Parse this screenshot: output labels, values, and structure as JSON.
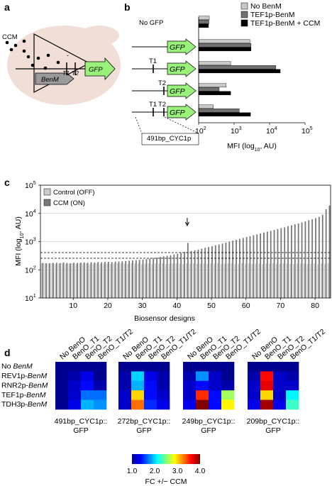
{
  "panel_letters": [
    "a",
    "b",
    "c",
    "d"
  ],
  "panel_a": {
    "ccm_label": "CCM",
    "gene_label": "BenM",
    "gfp_label": "GFP",
    "t1": "T1",
    "t2": "T2",
    "colors": {
      "cell": "#f1dfd7",
      "gfp": "#99f27a",
      "gene": "#9a9a9a"
    }
  },
  "panel_b": {
    "row_labels": [
      "No GFP",
      "",
      "",
      "",
      ""
    ],
    "constructs": [
      {
        "t1": "",
        "t2": "",
        "gfp": ""
      },
      {
        "t1": "",
        "t2": "",
        "gfp": "GFP"
      },
      {
        "t1": "T1",
        "t2": "",
        "gfp": "GFP"
      },
      {
        "t1": "",
        "t2": "T2",
        "gfp": "GFP"
      },
      {
        "t1": "T1",
        "t2": "T2",
        "gfp": "GFP"
      }
    ],
    "promoter_label": "491bp_CYC1p",
    "xlabel": "MFI (log10, AU)",
    "xticks": [
      "10",
      "10",
      "10",
      "10"
    ],
    "xtick_exp": [
      "2",
      "3",
      "4",
      "5"
    ]
  },
  "panel_c": {
    "legend": [
      "Control (OFF)",
      "CCM (ON)"
    ],
    "ylabel": "MFI (log10, AU)",
    "xlabel": "Biosensor designs",
    "yticks": [
      "10",
      "10",
      "10",
      "10",
      "10"
    ],
    "ytick_exp": [
      "1",
      "2",
      "3",
      "4",
      "5"
    ],
    "xticks": [
      "10",
      "20",
      "30",
      "40",
      "50",
      "60",
      "70",
      "80"
    ]
  },
  "panel_d": {
    "col_labels": [
      "No BenO",
      "BenO_T1",
      "BenO_T2",
      "BenO_T1/T2"
    ],
    "row_labels": [
      "No BenM",
      "REV1p-BenM",
      "RNR2p-BenM",
      "TEF1p-BenM",
      "TDH3p-BenM"
    ],
    "group_labels": [
      {
        "line1": "491bp_CYC1p::",
        "line2": "GFP"
      },
      {
        "line1": "272bp_CYC1p::",
        "line2": "GFP"
      },
      {
        "line1": "249bp_CYC1p::",
        "line2": "GFP"
      },
      {
        "line1": "209bp_CYC1p::",
        "line2": "GFP"
      }
    ],
    "colorbar_ticks": [
      "1.0",
      "2.0",
      "3.0",
      "4.0"
    ],
    "colorbar_label": "FC +/− CCM"
  },
  "chart_data": [
    {
      "type": "bar",
      "panel": "b",
      "orientation": "horizontal",
      "x_scale": "log",
      "xlim": [
        100,
        100000
      ],
      "xlabel": "MFI (log10, AU)",
      "legend_position": "top-right",
      "series": [
        {
          "name": "No BenM",
          "color": "#c8c8c8",
          "values": [
            200,
            2800,
            800,
            600,
            260
          ]
        },
        {
          "name": "TEF1p-BenM",
          "color": "#707070",
          "values": [
            195,
            3000,
            15000,
            380,
            1400
          ]
        },
        {
          "name": "TEF1p-BenM + CCM",
          "color": "#000000",
          "values": [
            190,
            3000,
            20000,
            800,
            2900
          ]
        }
      ]
    },
    {
      "type": "bar",
      "panel": "c",
      "y_scale": "log",
      "ylim": [
        10,
        100000
      ],
      "xlim": [
        0,
        84
      ],
      "xlabel": "Biosensor designs",
      "ylabel": "MFI (log10, AU)",
      "legend_position": "top-left",
      "reference_lines": [
        150,
        200
      ],
      "annotation_arrow_design": 43,
      "series": [
        {
          "name": "Control (OFF)",
          "color": "#cccccc",
          "values": [
            170,
            168,
            165,
            170,
            160,
            165,
            170,
            160,
            165,
            168,
            160,
            170,
            165,
            168,
            160,
            165,
            170,
            160,
            165,
            170,
            160,
            165,
            168,
            170,
            165,
            160,
            170,
            165,
            168,
            160,
            165,
            170,
            160,
            168,
            165,
            170,
            160,
            165,
            168,
            170,
            165,
            160,
            170,
            165,
            168,
            160,
            165,
            170,
            160,
            168,
            165,
            170,
            160,
            165,
            168,
            170,
            165,
            160,
            170,
            165,
            168,
            160,
            165,
            170,
            160,
            168,
            165,
            170,
            160,
            165,
            168,
            170,
            165,
            160,
            170,
            165,
            168,
            160,
            165,
            170,
            160,
            168,
            165,
            170
          ]
        },
        {
          "name": "CCM (ON)",
          "color": "#7a7a7a",
          "values": [
            175,
            172,
            170,
            175,
            178,
            172,
            180,
            175,
            170,
            178,
            175,
            180,
            182,
            178,
            185,
            180,
            188,
            185,
            190,
            192,
            188,
            195,
            198,
            200,
            205,
            210,
            215,
            220,
            225,
            230,
            240,
            250,
            260,
            270,
            285,
            300,
            315,
            330,
            350,
            370,
            400,
            430,
            900,
            460,
            490,
            520,
            560,
            600,
            640,
            690,
            740,
            790,
            850,
            920,
            1000,
            1080,
            1160,
            1250,
            1350,
            1450,
            1560,
            1680,
            1800,
            1950,
            2100,
            2250,
            2400,
            2600,
            2800,
            3000,
            3200,
            3500,
            3800,
            4100,
            4400,
            4800,
            5200,
            5700,
            6200,
            6800,
            7500,
            9000,
            14000,
            19000
          ]
        }
      ]
    },
    {
      "type": "heatmap",
      "panel": "d",
      "colorscale_range": [
        1.0,
        4.0
      ],
      "colorbar_label": "FC +/− CCM",
      "rows": [
        "No BenM",
        "REV1p-BenM",
        "RNR2p-BenM",
        "TEF1p-BenM",
        "TDH3p-BenM"
      ],
      "columns": [
        "No BenO",
        "BenO_T1",
        "BenO_T2",
        "BenO_T1/T2"
      ],
      "groups": [
        {
          "name": "491bp_CYC1p::GFP",
          "values": [
            [
              1.0,
              1.0,
              1.0,
              1.0
            ],
            [
              1.0,
              1.1,
              1.3,
              1.0
            ],
            [
              1.0,
              1.2,
              1.4,
              1.1
            ],
            [
              1.0,
              1.2,
              1.7,
              1.7
            ],
            [
              1.0,
              1.3,
              1.9,
              1.8
            ]
          ]
        },
        {
          "name": "272bp_CYC1p::GFP",
          "values": [
            [
              1.0,
              1.0,
              1.0,
              1.0
            ],
            [
              1.1,
              2.0,
              1.3,
              1.1
            ],
            [
              1.1,
              1.9,
              1.4,
              1.1
            ],
            [
              1.2,
              3.0,
              1.4,
              1.2
            ],
            [
              1.2,
              3.3,
              1.5,
              1.3
            ]
          ]
        },
        {
          "name": "249bp_CYC1p::GFP",
          "values": [
            [
              1.0,
              1.0,
              1.0,
              1.0
            ],
            [
              1.1,
              1.8,
              1.2,
              1.0
            ],
            [
              1.2,
              1.4,
              1.2,
              1.1
            ],
            [
              1.2,
              3.5,
              1.4,
              2.6
            ],
            [
              1.3,
              4.0,
              1.4,
              2.9
            ]
          ]
        },
        {
          "name": "209bp_CYC1p::GFP",
          "values": [
            [
              1.0,
              1.0,
              1.0,
              1.0
            ],
            [
              1.1,
              3.6,
              1.2,
              1.1
            ],
            [
              1.2,
              3.7,
              1.2,
              1.2
            ],
            [
              1.2,
              3.0,
              1.2,
              2.1
            ],
            [
              1.3,
              3.9,
              1.3,
              2.3
            ]
          ]
        }
      ]
    }
  ]
}
